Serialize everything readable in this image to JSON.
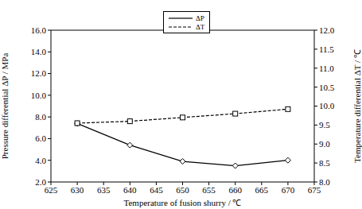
{
  "chart_data": {
    "type": "line",
    "x_label": "Temperature of fusion shurry / ℃",
    "y_label": "Pressure differential ΔP / MPa",
    "y2_label": "Temperature differential ΔT / ℃",
    "x": [
      630,
      640,
      650,
      660,
      670
    ],
    "series": [
      {
        "name": "ΔP",
        "color": "#000000",
        "marker": "diamond",
        "line_style": "solid",
        "values": [
          7.4,
          5.4,
          3.9,
          3.5,
          4.0
        ]
      },
      {
        "name": "ΔT",
        "color": "#000000",
        "marker": "square",
        "line_style": "dashed",
        "axis": "y2",
        "values": [
          9.55,
          9.6,
          9.7,
          9.8,
          9.92
        ]
      }
    ],
    "xlim": [
      625,
      675
    ],
    "xticks": [
      625,
      630,
      635,
      640,
      645,
      650,
      655,
      660,
      665,
      670,
      675
    ],
    "ylim": [
      2,
      16
    ],
    "yticks": [
      {
        "value": 2,
        "label": "2.0"
      },
      {
        "value": 4,
        "label": "4.0"
      },
      {
        "value": 6,
        "label": "6.0"
      },
      {
        "value": 8,
        "label": "8.0"
      },
      {
        "value": 10,
        "label": "10.0"
      },
      {
        "value": 12,
        "label": "12.0"
      },
      {
        "value": 14,
        "label": "14.0"
      },
      {
        "value": 16,
        "label": "16.0"
      }
    ],
    "y2lim": [
      8,
      12
    ],
    "y2ticks": [
      {
        "value": 8,
        "label": "8.0"
      },
      {
        "value": 8.5,
        "label": "8.5"
      },
      {
        "value": 9,
        "label": "9.0"
      },
      {
        "value": 9.5,
        "label": "9.5"
      },
      {
        "value": 10,
        "label": "10.0"
      },
      {
        "value": 10.5,
        "label": "10.5"
      },
      {
        "value": 11,
        "label": "11.0"
      },
      {
        "value": 11.5,
        "label": "11.5"
      },
      {
        "value": 12,
        "label": "12.0"
      }
    ],
    "legend": "top",
    "grid": false
  }
}
